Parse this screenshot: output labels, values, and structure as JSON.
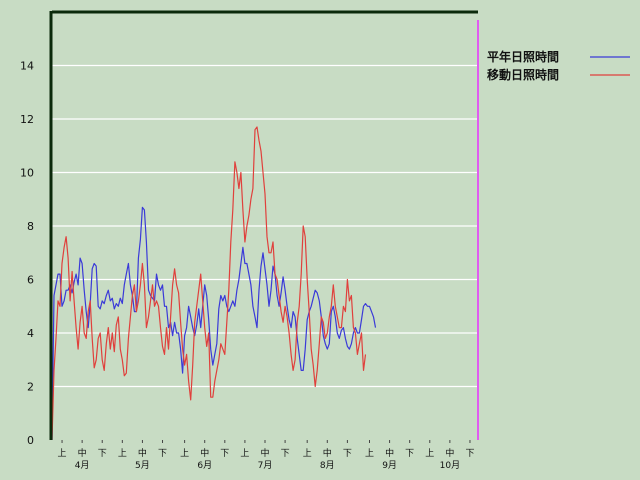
{
  "chart_data": {
    "type": "line",
    "title": "",
    "xlabel": "",
    "ylabel": "",
    "ylim": [
      0,
      16
    ],
    "yticks": [
      0,
      2,
      4,
      6,
      8,
      10,
      12,
      14
    ],
    "grid": true,
    "legend_position": "top-right",
    "x_unit_days": "April 1 = day 0",
    "x_range": [
      0,
      212
    ],
    "periods": [
      "上",
      "中",
      "下"
    ],
    "months": [
      "4月",
      "5月",
      "6月",
      "7月",
      "8月",
      "9月",
      "10月"
    ],
    "marker_day": 212,
    "marker_color": "#e05cf0",
    "series": [
      {
        "name": "平年日照時間",
        "color": "#3a3ad8",
        "points": [
          [
            0,
            0
          ],
          [
            1,
            5.4
          ],
          [
            2,
            5.8
          ],
          [
            3,
            6.2
          ],
          [
            4,
            6.2
          ],
          [
            5,
            5.0
          ],
          [
            6,
            5.2
          ],
          [
            7,
            5.6
          ],
          [
            8,
            5.6
          ],
          [
            9,
            5.8
          ],
          [
            10,
            5.5
          ],
          [
            11,
            5.9
          ],
          [
            12,
            6.2
          ],
          [
            13,
            5.8
          ],
          [
            14,
            6.8
          ],
          [
            15,
            6.6
          ],
          [
            16,
            5.6
          ],
          [
            17,
            4.8
          ],
          [
            18,
            4.2
          ],
          [
            19,
            5.1
          ],
          [
            20,
            6.4
          ],
          [
            21,
            6.6
          ],
          [
            22,
            6.5
          ],
          [
            23,
            5.0
          ],
          [
            24,
            4.9
          ],
          [
            25,
            5.2
          ],
          [
            26,
            5.1
          ],
          [
            27,
            5.4
          ],
          [
            28,
            5.6
          ],
          [
            29,
            5.2
          ],
          [
            30,
            5.3
          ],
          [
            31,
            4.9
          ],
          [
            32,
            5.1
          ],
          [
            33,
            5.0
          ],
          [
            34,
            5.3
          ],
          [
            35,
            5.1
          ],
          [
            36,
            5.8
          ],
          [
            37,
            6.2
          ],
          [
            38,
            6.6
          ],
          [
            39,
            5.8
          ],
          [
            40,
            5.4
          ],
          [
            41,
            4.8
          ],
          [
            42,
            4.8
          ],
          [
            43,
            6.8
          ],
          [
            44,
            7.5
          ],
          [
            45,
            8.7
          ],
          [
            46,
            8.6
          ],
          [
            47,
            7.4
          ],
          [
            48,
            5.6
          ],
          [
            49,
            5.4
          ],
          [
            50,
            5.3
          ],
          [
            51,
            5.2
          ],
          [
            52,
            6.2
          ],
          [
            53,
            5.8
          ],
          [
            54,
            5.6
          ],
          [
            55,
            5.8
          ],
          [
            56,
            5.0
          ],
          [
            57,
            5.0
          ],
          [
            58,
            4.2
          ],
          [
            59,
            4.4
          ],
          [
            60,
            3.9
          ],
          [
            61,
            4.4
          ],
          [
            62,
            4.0
          ],
          [
            63,
            4.0
          ],
          [
            64,
            3.4
          ],
          [
            65,
            2.5
          ],
          [
            66,
            3.9
          ],
          [
            67,
            4.2
          ],
          [
            68,
            5.0
          ],
          [
            69,
            4.6
          ],
          [
            70,
            4.2
          ],
          [
            71,
            3.9
          ],
          [
            72,
            4.3
          ],
          [
            73,
            4.9
          ],
          [
            74,
            4.2
          ],
          [
            75,
            5.0
          ],
          [
            76,
            5.8
          ],
          [
            77,
            5.4
          ],
          [
            78,
            4.5
          ],
          [
            79,
            3.4
          ],
          [
            80,
            2.8
          ],
          [
            81,
            3.2
          ],
          [
            82,
            3.6
          ],
          [
            83,
            4.9
          ],
          [
            84,
            5.4
          ],
          [
            85,
            5.2
          ],
          [
            86,
            5.4
          ],
          [
            87,
            5.0
          ],
          [
            88,
            4.8
          ],
          [
            89,
            5.0
          ],
          [
            90,
            5.2
          ],
          [
            91,
            5.0
          ],
          [
            92,
            5.6
          ],
          [
            93,
            6.0
          ],
          [
            94,
            6.6
          ],
          [
            95,
            7.2
          ],
          [
            96,
            6.6
          ],
          [
            97,
            6.6
          ],
          [
            98,
            6.2
          ],
          [
            99,
            5.8
          ],
          [
            100,
            5.0
          ],
          [
            101,
            4.6
          ],
          [
            102,
            4.2
          ],
          [
            103,
            5.6
          ],
          [
            104,
            6.5
          ],
          [
            105,
            7.0
          ],
          [
            106,
            6.4
          ],
          [
            107,
            5.8
          ],
          [
            108,
            5.0
          ],
          [
            109,
            5.6
          ],
          [
            110,
            6.5
          ],
          [
            111,
            6.2
          ],
          [
            112,
            5.4
          ],
          [
            113,
            5.0
          ],
          [
            114,
            5.5
          ],
          [
            115,
            6.1
          ],
          [
            116,
            5.6
          ],
          [
            117,
            5.0
          ],
          [
            118,
            4.5
          ],
          [
            119,
            4.2
          ],
          [
            120,
            4.8
          ],
          [
            121,
            4.6
          ],
          [
            122,
            3.8
          ],
          [
            123,
            3.2
          ],
          [
            124,
            2.6
          ],
          [
            125,
            2.6
          ],
          [
            126,
            3.4
          ],
          [
            127,
            4.5
          ],
          [
            128,
            4.8
          ],
          [
            129,
            5.0
          ],
          [
            130,
            5.3
          ],
          [
            131,
            5.6
          ],
          [
            132,
            5.5
          ],
          [
            133,
            5.2
          ],
          [
            134,
            4.6
          ],
          [
            135,
            3.9
          ],
          [
            136,
            3.6
          ],
          [
            137,
            3.4
          ],
          [
            138,
            3.6
          ],
          [
            139,
            4.8
          ],
          [
            140,
            5.0
          ],
          [
            141,
            4.6
          ],
          [
            142,
            4.0
          ],
          [
            143,
            3.8
          ],
          [
            144,
            4.1
          ],
          [
            145,
            4.2
          ],
          [
            146,
            3.8
          ],
          [
            147,
            3.5
          ],
          [
            148,
            3.4
          ],
          [
            149,
            3.6
          ],
          [
            150,
            4.0
          ],
          [
            151,
            4.2
          ],
          [
            152,
            4.0
          ],
          [
            153,
            4.0
          ],
          [
            154,
            4.5
          ],
          [
            155,
            5.0
          ],
          [
            156,
            5.1
          ],
          [
            157,
            5.0
          ],
          [
            158,
            5.0
          ],
          [
            159,
            4.8
          ],
          [
            160,
            4.6
          ],
          [
            161,
            4.2
          ]
        ]
      },
      {
        "name": "移動日照時間",
        "color": "#e0403c",
        "points": [
          [
            0,
            0
          ],
          [
            1,
            2.6
          ],
          [
            2,
            3.8
          ],
          [
            3,
            5.2
          ],
          [
            4,
            5.0
          ],
          [
            5,
            6.6
          ],
          [
            6,
            7.2
          ],
          [
            7,
            7.6
          ],
          [
            8,
            6.8
          ],
          [
            9,
            5.2
          ],
          [
            10,
            6.3
          ],
          [
            11,
            5.2
          ],
          [
            12,
            4.2
          ],
          [
            13,
            3.4
          ],
          [
            14,
            4.4
          ],
          [
            15,
            5.0
          ],
          [
            16,
            4.0
          ],
          [
            17,
            3.8
          ],
          [
            18,
            4.8
          ],
          [
            19,
            5.2
          ],
          [
            20,
            3.8
          ],
          [
            21,
            2.7
          ],
          [
            22,
            3.0
          ],
          [
            23,
            3.8
          ],
          [
            24,
            4.0
          ],
          [
            25,
            3.0
          ],
          [
            26,
            2.6
          ],
          [
            27,
            3.6
          ],
          [
            28,
            4.2
          ],
          [
            29,
            3.4
          ],
          [
            30,
            4.0
          ],
          [
            31,
            3.3
          ],
          [
            32,
            4.3
          ],
          [
            33,
            4.6
          ],
          [
            34,
            3.4
          ],
          [
            35,
            3.0
          ],
          [
            36,
            2.4
          ],
          [
            37,
            2.5
          ],
          [
            38,
            3.8
          ],
          [
            39,
            4.6
          ],
          [
            40,
            5.4
          ],
          [
            41,
            5.8
          ],
          [
            42,
            4.8
          ],
          [
            43,
            5.2
          ],
          [
            44,
            5.8
          ],
          [
            45,
            6.6
          ],
          [
            46,
            5.8
          ],
          [
            47,
            4.2
          ],
          [
            48,
            4.6
          ],
          [
            49,
            5.2
          ],
          [
            50,
            5.8
          ],
          [
            51,
            5.0
          ],
          [
            52,
            5.2
          ],
          [
            53,
            5.0
          ],
          [
            54,
            4.2
          ],
          [
            55,
            3.5
          ],
          [
            56,
            3.2
          ],
          [
            57,
            4.2
          ],
          [
            58,
            3.4
          ],
          [
            59,
            4.6
          ],
          [
            60,
            5.8
          ],
          [
            61,
            6.4
          ],
          [
            62,
            5.8
          ],
          [
            63,
            5.5
          ],
          [
            64,
            4.4
          ],
          [
            65,
            3.4
          ],
          [
            66,
            2.8
          ],
          [
            67,
            3.2
          ],
          [
            68,
            2.2
          ],
          [
            69,
            1.5
          ],
          [
            70,
            2.8
          ],
          [
            71,
            4.4
          ],
          [
            72,
            5.0
          ],
          [
            73,
            5.6
          ],
          [
            74,
            6.2
          ],
          [
            75,
            5.2
          ],
          [
            76,
            4.2
          ],
          [
            77,
            3.5
          ],
          [
            78,
            4.0
          ],
          [
            79,
            1.6
          ],
          [
            80,
            1.6
          ],
          [
            81,
            2.2
          ],
          [
            82,
            2.6
          ],
          [
            83,
            3.0
          ],
          [
            84,
            3.6
          ],
          [
            85,
            3.4
          ],
          [
            86,
            3.2
          ],
          [
            87,
            4.4
          ],
          [
            88,
            5.6
          ],
          [
            89,
            7.4
          ],
          [
            90,
            8.6
          ],
          [
            91,
            10.4
          ],
          [
            92,
            10.0
          ],
          [
            93,
            9.4
          ],
          [
            94,
            10.0
          ],
          [
            95,
            8.6
          ],
          [
            96,
            7.4
          ],
          [
            97,
            8.0
          ],
          [
            98,
            8.4
          ],
          [
            99,
            9.0
          ],
          [
            100,
            9.4
          ],
          [
            101,
            11.6
          ],
          [
            102,
            11.7
          ],
          [
            103,
            11.2
          ],
          [
            104,
            10.8
          ],
          [
            105,
            10.0
          ],
          [
            106,
            9.2
          ],
          [
            107,
            7.6
          ],
          [
            108,
            7.0
          ],
          [
            109,
            7.0
          ],
          [
            110,
            7.4
          ],
          [
            111,
            6.2
          ],
          [
            112,
            6.0
          ],
          [
            113,
            5.4
          ],
          [
            114,
            4.8
          ],
          [
            115,
            4.4
          ],
          [
            116,
            5.0
          ],
          [
            117,
            4.6
          ],
          [
            118,
            4.0
          ],
          [
            119,
            3.2
          ],
          [
            120,
            2.6
          ],
          [
            121,
            3.0
          ],
          [
            122,
            4.4
          ],
          [
            123,
            5.0
          ],
          [
            124,
            6.2
          ],
          [
            125,
            8.0
          ],
          [
            126,
            7.6
          ],
          [
            127,
            6.0
          ],
          [
            128,
            4.8
          ],
          [
            129,
            3.4
          ],
          [
            130,
            2.8
          ],
          [
            131,
            2.0
          ],
          [
            132,
            2.6
          ],
          [
            133,
            3.6
          ],
          [
            134,
            4.6
          ],
          [
            135,
            4.4
          ],
          [
            136,
            3.8
          ],
          [
            137,
            4.0
          ],
          [
            138,
            4.6
          ],
          [
            139,
            5.0
          ],
          [
            140,
            5.8
          ],
          [
            141,
            5.0
          ],
          [
            142,
            4.6
          ],
          [
            143,
            4.2
          ],
          [
            144,
            4.2
          ],
          [
            145,
            5.0
          ],
          [
            146,
            4.8
          ],
          [
            147,
            6.0
          ],
          [
            148,
            5.2
          ],
          [
            149,
            5.4
          ],
          [
            150,
            4.2
          ],
          [
            151,
            4.0
          ],
          [
            152,
            3.2
          ],
          [
            153,
            3.6
          ],
          [
            154,
            4.0
          ],
          [
            155,
            2.6
          ],
          [
            156,
            3.2
          ]
        ]
      }
    ]
  }
}
